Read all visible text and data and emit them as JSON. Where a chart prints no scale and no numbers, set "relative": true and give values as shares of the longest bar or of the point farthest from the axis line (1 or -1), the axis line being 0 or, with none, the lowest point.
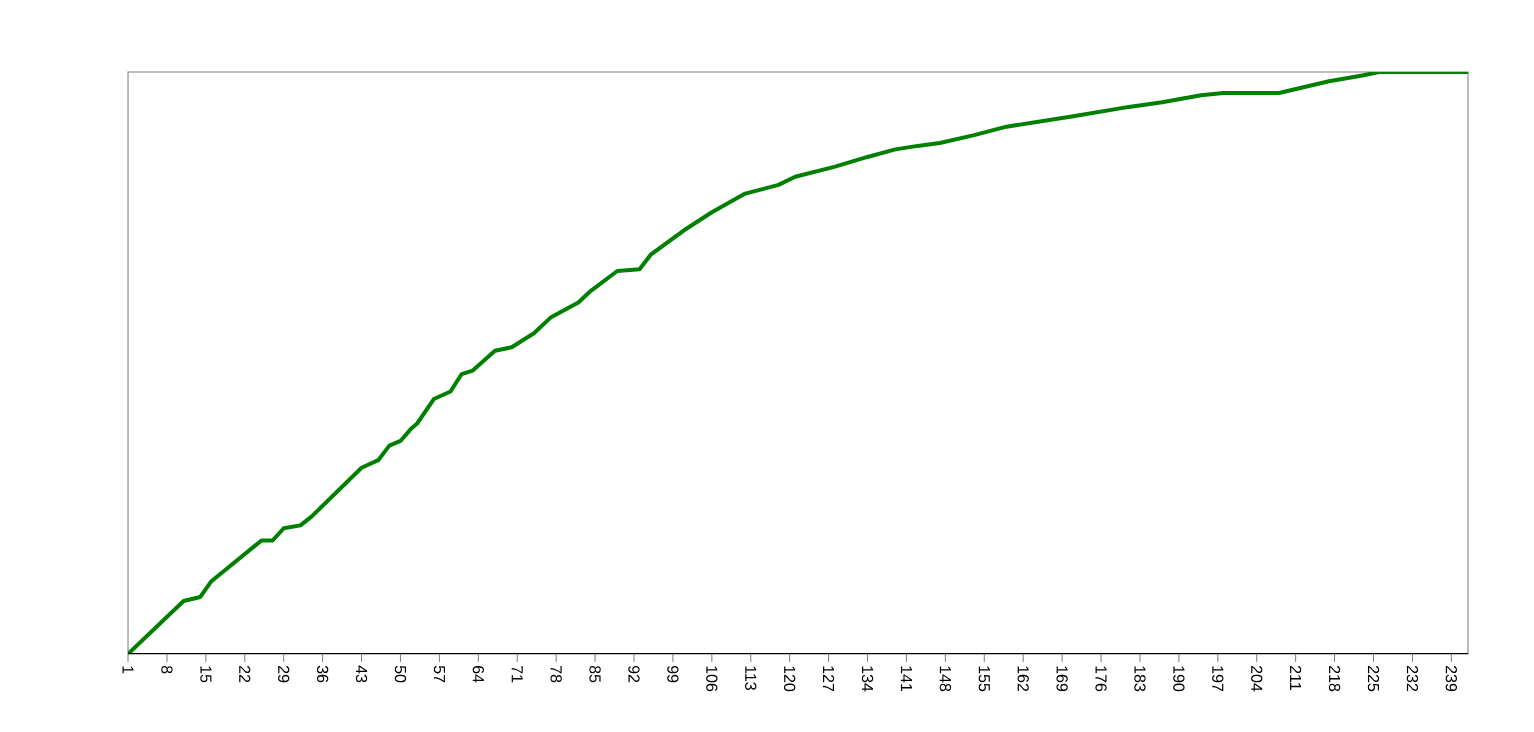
{
  "chart_data": {
    "type": "line",
    "relative": true,
    "color": "#008000",
    "marker": "none",
    "line_style": "solid",
    "x": [
      1,
      11,
      14,
      16,
      25,
      27,
      29,
      32,
      34,
      43,
      46,
      48,
      50,
      52,
      53,
      56,
      59,
      61,
      63,
      67,
      70,
      74,
      77,
      82,
      84,
      89,
      93,
      95,
      101,
      106,
      112,
      118,
      121,
      128,
      134,
      139,
      143,
      147,
      153,
      159,
      171,
      181,
      187,
      194,
      198,
      208,
      217,
      223,
      226,
      242
    ],
    "values": [
      0,
      0.091,
      0.098,
      0.125,
      0.195,
      0.195,
      0.216,
      0.221,
      0.236,
      0.32,
      0.333,
      0.358,
      0.366,
      0.388,
      0.396,
      0.438,
      0.451,
      0.481,
      0.487,
      0.521,
      0.527,
      0.551,
      0.578,
      0.604,
      0.622,
      0.658,
      0.661,
      0.686,
      0.728,
      0.759,
      0.791,
      0.806,
      0.82,
      0.837,
      0.854,
      0.867,
      0.873,
      0.878,
      0.891,
      0.906,
      0.924,
      0.94,
      0.948,
      0.96,
      0.964,
      0.964,
      0.984,
      0.994,
      1,
      1
    ],
    "xlim": [
      1,
      242
    ],
    "xticks": [
      1,
      8,
      15,
      22,
      29,
      36,
      43,
      50,
      57,
      64,
      71,
      78,
      85,
      92,
      99,
      106,
      113,
      120,
      127,
      134,
      141,
      148,
      155,
      162,
      169,
      176,
      183,
      190,
      197,
      204,
      211,
      218,
      225,
      232,
      239
    ]
  }
}
